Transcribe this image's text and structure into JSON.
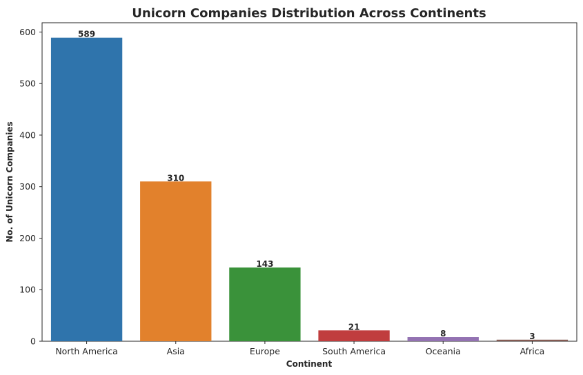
{
  "chart_data": {
    "type": "bar",
    "title": "Unicorn Companies Distribution Across Continents",
    "xlabel": "Continent",
    "ylabel": "No. of Unicorn Companies",
    "categories": [
      "North America",
      "Asia",
      "Europe",
      "South America",
      "Oceania",
      "Africa"
    ],
    "values": [
      589,
      310,
      143,
      21,
      8,
      3
    ],
    "data_labels": [
      "589",
      "310",
      "143",
      "21",
      "8",
      "3"
    ],
    "colors": [
      "#2f74ac",
      "#e2812c",
      "#3a923a",
      "#c03d3e",
      "#9372b2",
      "#845b53"
    ],
    "yticks": [
      0,
      100,
      200,
      300,
      400,
      500,
      600
    ],
    "ytick_labels": [
      "0",
      "100",
      "200",
      "300",
      "400",
      "500",
      "600"
    ],
    "ylim": [
      0,
      618
    ],
    "grid": false,
    "legend": "none"
  }
}
